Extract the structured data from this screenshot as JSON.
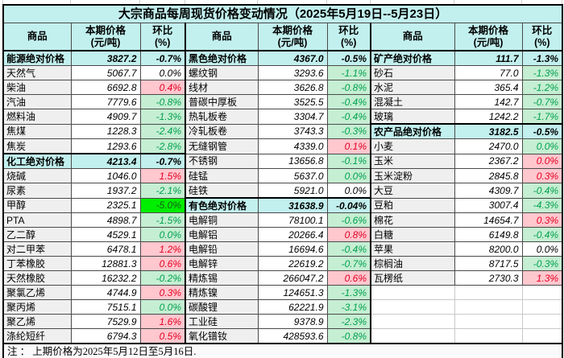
{
  "title": "大宗商品每周现货价格变动情况（2025年5月19日--5月23日）",
  "note": "注 ： 上期价格为2025年5月12日至5月16日.",
  "header": {
    "commodity": "商品",
    "price_l1": "本期价格",
    "price_l2": "(元/吨)",
    "pct_l1": "环比",
    "pct_l2": "(%)"
  },
  "colors": {
    "header_bg": "#c2f0ee",
    "aggregate_row_bg": "#c2f0ee",
    "increase_bg": "#ffc7ce",
    "increase_text": "#e30022",
    "decrease_bg": "#c5eed2",
    "decrease_text": "#00a14e",
    "big_decrease_bg": "#00ee00",
    "name_column_bg": "#efefef"
  },
  "chart_data": {
    "type": "table",
    "title": "大宗商品每周现货价格变动情况（2025年5月19日--5月23日）",
    "column_headers": [
      "商品",
      "本期价格(元/吨)",
      "环比(%)",
      "商品",
      "本期价格(元/吨)",
      "环比(%)",
      "商品",
      "本期价格(元/吨)",
      "环比(%)"
    ],
    "footnote": "注 ： 上期价格为2025年5月12日至5月16日.",
    "rows": [
      [
        {
          "name": "能源绝对价格",
          "price": "3827.2",
          "change": "-0.7%",
          "style": "agg"
        },
        {
          "name": "黑色绝对价格",
          "price": "4367.0",
          "change": "-0.5%",
          "style": "agg"
        },
        {
          "name": "矿产绝对价格",
          "price": "111.7",
          "change": "-1.3%",
          "style": "agg"
        }
      ],
      [
        {
          "name": "天然气",
          "price": "5067.7",
          "change": "0.0%",
          "style": "flat"
        },
        {
          "name": "螺纹钢",
          "price": "3293.6",
          "change": "-1.1%",
          "style": "down"
        },
        {
          "name": "砂石",
          "price": "77.0",
          "change": "-1.3%",
          "style": "down"
        }
      ],
      [
        {
          "name": "柴油",
          "price": "6692.8",
          "change": "0.4%",
          "style": "up"
        },
        {
          "name": "线材",
          "price": "3626.8",
          "change": "-0.8%",
          "style": "down"
        },
        {
          "name": "水泥",
          "price": "365.4",
          "change": "-1.2%",
          "style": "down"
        }
      ],
      [
        {
          "name": "汽油",
          "price": "7779.6",
          "change": "-0.8%",
          "style": "down"
        },
        {
          "name": "普碳中厚板",
          "price": "3525.5",
          "change": "-0.4%",
          "style": "down"
        },
        {
          "name": "混凝土",
          "price": "142.7",
          "change": "-0.7%",
          "style": "down"
        }
      ],
      [
        {
          "name": "燃料油",
          "price": "4909.7",
          "change": "-1.3%",
          "style": "down"
        },
        {
          "name": "热轧板卷",
          "price": "3304.7",
          "change": "-0.4%",
          "style": "down"
        },
        {
          "name": "玻璃",
          "price": "1242.2",
          "change": "-1.7%",
          "style": "down"
        }
      ],
      [
        {
          "name": "焦煤",
          "price": "1228.3",
          "change": "-2.4%",
          "style": "down"
        },
        {
          "name": "冷轧板卷",
          "price": "3743.3",
          "change": "-0.3%",
          "style": "down"
        },
        {
          "name": "农产品绝对价格",
          "price": "3182.5",
          "change": "-0.5%",
          "style": "agg"
        }
      ],
      [
        {
          "name": "焦炭",
          "price": "1293.6",
          "change": "-2.8%",
          "style": "down"
        },
        {
          "name": "无缝钢管",
          "price": "4339.0",
          "change": "0.1%",
          "style": "up"
        },
        {
          "name": "小麦",
          "price": "2470.0",
          "change": "0.0%",
          "style": "down"
        }
      ],
      [
        {
          "name": "化工绝对价格",
          "price": "4213.4",
          "change": "-0.7%",
          "style": "agg"
        },
        {
          "name": "不锈钢",
          "price": "13656.8",
          "change": "-0.1%",
          "style": "down"
        },
        {
          "name": "玉米",
          "price": "2367.2",
          "change": "0.0%",
          "style": "up"
        }
      ],
      [
        {
          "name": "烧碱",
          "price": "1046.0",
          "change": "1.5%",
          "style": "up"
        },
        {
          "name": "硅锰",
          "price": "5637.0",
          "change": "0.0%",
          "style": "down"
        },
        {
          "name": "玉米淀粉",
          "price": "2845.8",
          "change": "0.3%",
          "style": "up"
        }
      ],
      [
        {
          "name": "尿素",
          "price": "1937.2",
          "change": "-2.1%",
          "style": "down"
        },
        {
          "name": "硅铁",
          "price": "5921.0",
          "change": "0.0%",
          "style": "flat"
        },
        {
          "name": "大豆",
          "price": "4309.7",
          "change": "-0.4%",
          "style": "down"
        }
      ],
      [
        {
          "name": "甲醇",
          "price": "2325.1",
          "change": "-5.0%",
          "style": "bigdown"
        },
        {
          "name": "有色绝对价格",
          "price": "31638.9",
          "change": "-0.04%",
          "style": "agg"
        },
        {
          "name": "豆粕",
          "price": "3007.4",
          "change": "-4.3%",
          "style": "down"
        }
      ],
      [
        {
          "name": "PTA",
          "price": "4898.7",
          "change": "-1.5%",
          "style": "down"
        },
        {
          "name": "电解铜",
          "price": "78100.1",
          "change": "-0.6%",
          "style": "down"
        },
        {
          "name": "棉花",
          "price": "14654.7",
          "change": "0.3%",
          "style": "up"
        }
      ],
      [
        {
          "name": "乙二醇",
          "price": "4529.1",
          "change": "0.0%",
          "style": "down"
        },
        {
          "name": "电解铝",
          "price": "20266.4",
          "change": "0.8%",
          "style": "up"
        },
        {
          "name": "白糖",
          "price": "6149.8",
          "change": "-0.4%",
          "style": "down"
        }
      ],
      [
        {
          "name": "对二甲苯",
          "price": "6478.1",
          "change": "1.2%",
          "style": "up"
        },
        {
          "name": "电解铅",
          "price": "16694.6",
          "change": "-0.4%",
          "style": "down"
        },
        {
          "name": "苹果",
          "price": "8200.0",
          "change": "0.0%",
          "style": "flat"
        }
      ],
      [
        {
          "name": "丁苯橡胶",
          "price": "12881.3",
          "change": "0.6%",
          "style": "up"
        },
        {
          "name": "电解锌",
          "price": "22619.2",
          "change": "-0.7%",
          "style": "down"
        },
        {
          "name": "棕榈油",
          "price": "8717.5",
          "change": "-0.3%",
          "style": "down"
        }
      ],
      [
        {
          "name": "天然橡胶",
          "price": "16232.2",
          "change": "-0.2%",
          "style": "down"
        },
        {
          "name": "精炼锡",
          "price": "266047.2",
          "change": "0.6%",
          "style": "up"
        },
        {
          "name": "瓦楞纸",
          "price": "2730.3",
          "change": "1.3%",
          "style": "up"
        }
      ],
      [
        {
          "name": "聚氯乙烯",
          "price": "4744.9",
          "change": "0.3%",
          "style": "up"
        },
        {
          "name": "精炼镍",
          "price": "124651.3",
          "change": "-1.3%",
          "style": "down"
        },
        {
          "name": "",
          "price": "",
          "change": "",
          "style": "empty"
        }
      ],
      [
        {
          "name": "聚丙烯",
          "price": "7515.1",
          "change": "0.0%",
          "style": "down"
        },
        {
          "name": "碳酸锂",
          "price": "62221.9",
          "change": "-3.1%",
          "style": "down"
        },
        {
          "name": "",
          "price": "",
          "change": "",
          "style": "empty"
        }
      ],
      [
        {
          "name": "聚乙烯",
          "price": "7529.9",
          "change": "1.6%",
          "style": "up"
        },
        {
          "name": "工业硅",
          "price": "9378.9",
          "change": "-2.3%",
          "style": "down"
        },
        {
          "name": "",
          "price": "",
          "change": "",
          "style": "empty"
        }
      ],
      [
        {
          "name": "涤纶短纤",
          "price": "6794.3",
          "change": "0.5%",
          "style": "up"
        },
        {
          "name": "氧化镨钕",
          "price": "428593.6",
          "change": "-0.8%",
          "style": "down"
        },
        {
          "name": "",
          "price": "",
          "change": "",
          "style": "empty"
        }
      ]
    ]
  }
}
